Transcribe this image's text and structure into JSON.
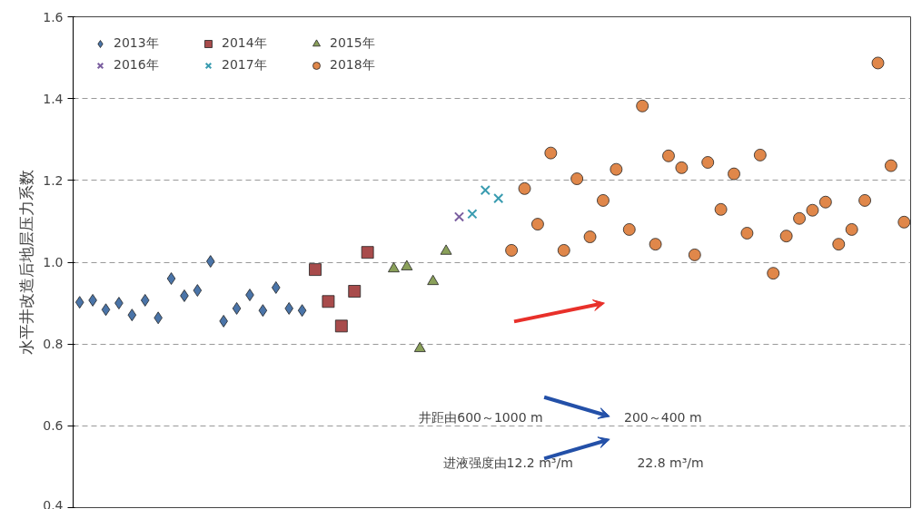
{
  "chart_data": {
    "type": "scatter",
    "ylabel": "水平井改造后地层压力系数",
    "categories": [
      null,
      null,
      null,
      null,
      null,
      null,
      null,
      null,
      null,
      null,
      null,
      null,
      null,
      null,
      null,
      null,
      null,
      null,
      null,
      null,
      null,
      null,
      null,
      null,
      null,
      null,
      null,
      null,
      null,
      null,
      null,
      null,
      null,
      null,
      null,
      null,
      null,
      null,
      null,
      null,
      null,
      null,
      null,
      null,
      null,
      null,
      null,
      null,
      null,
      null,
      null,
      null,
      null,
      null,
      null,
      null,
      null,
      null,
      null,
      null,
      null,
      null,
      null,
      null
    ],
    "ylim": [
      0.4,
      1.6
    ],
    "yticks": [
      0.4,
      0.6,
      0.8,
      {
        "value": 1.0,
        "label": "1.0"
      },
      1.2,
      1.4,
      1.6
    ],
    "grid": "y",
    "legend": "top left",
    "series": [
      {
        "name": "2013年",
        "color": "#4a74a8",
        "marker": "diamond",
        "values": [
          0.902,
          0.907,
          0.884,
          0.9,
          0.871,
          0.907,
          0.864,
          0.96,
          0.918,
          0.931,
          1.002,
          0.856,
          0.887,
          0.92,
          0.882,
          0.938,
          0.887,
          0.882,
          null,
          null,
          null,
          null,
          null,
          null,
          null,
          null,
          null,
          null,
          null,
          null,
          null,
          null,
          null,
          null,
          null,
          null,
          null,
          null,
          null,
          null,
          null,
          null,
          null,
          null,
          null,
          null,
          null,
          null,
          null,
          null,
          null,
          null,
          null,
          null,
          null,
          null,
          null,
          null,
          null,
          null,
          null,
          null,
          null,
          null
        ]
      },
      {
        "name": "2014年",
        "color": "#a84b4b",
        "marker": "square",
        "values": [
          null,
          null,
          null,
          null,
          null,
          null,
          null,
          null,
          null,
          null,
          null,
          null,
          null,
          null,
          null,
          null,
          null,
          null,
          0.982,
          0.904,
          0.844,
          0.929,
          1.024,
          null,
          null,
          null,
          null,
          null,
          null,
          null,
          null,
          null,
          null,
          null,
          null,
          null,
          null,
          null,
          null,
          null,
          null,
          null,
          null,
          null,
          null,
          null,
          null,
          null,
          null,
          null,
          null,
          null,
          null,
          null,
          null,
          null,
          null,
          null,
          null,
          null,
          null,
          null,
          null,
          null
        ]
      },
      {
        "name": "2015年",
        "color": "#8aa05a",
        "marker": "triangle",
        "values": [
          null,
          null,
          null,
          null,
          null,
          null,
          null,
          null,
          null,
          null,
          null,
          null,
          null,
          null,
          null,
          null,
          null,
          null,
          null,
          null,
          null,
          null,
          null,
          null,
          0.984,
          0.989,
          0.789,
          0.953,
          1.027,
          null,
          null,
          null,
          null,
          null,
          null,
          null,
          null,
          null,
          null,
          null,
          null,
          null,
          null,
          null,
          null,
          null,
          null,
          null,
          null,
          null,
          null,
          null,
          null,
          null,
          null,
          null,
          null,
          null,
          null,
          null,
          null,
          null,
          null,
          null
        ]
      },
      {
        "name": "2016年",
        "color": "#7b5fa0",
        "marker": "cross",
        "values": [
          null,
          null,
          null,
          null,
          null,
          null,
          null,
          null,
          null,
          null,
          null,
          null,
          null,
          null,
          null,
          null,
          null,
          null,
          null,
          null,
          null,
          null,
          null,
          null,
          null,
          null,
          null,
          null,
          null,
          1.111,
          null,
          null,
          null,
          null,
          null,
          null,
          null,
          null,
          null,
          null,
          null,
          null,
          null,
          null,
          null,
          null,
          null,
          null,
          null,
          null,
          null,
          null,
          null,
          null,
          null,
          null,
          null,
          null,
          null,
          null,
          null,
          null,
          null,
          null
        ]
      },
      {
        "name": "2017年",
        "color": "#3a9cb0",
        "marker": "cross",
        "values": [
          null,
          null,
          null,
          null,
          null,
          null,
          null,
          null,
          null,
          null,
          null,
          null,
          null,
          null,
          null,
          null,
          null,
          null,
          null,
          null,
          null,
          null,
          null,
          null,
          null,
          null,
          null,
          null,
          null,
          null,
          1.118,
          1.176,
          1.156,
          null,
          null,
          null,
          null,
          null,
          null,
          null,
          null,
          null,
          null,
          null,
          null,
          null,
          null,
          null,
          null,
          null,
          null,
          null,
          null,
          null,
          null,
          null,
          null,
          null,
          null,
          null,
          null,
          null,
          null,
          null
        ]
      },
      {
        "name": "2018年",
        "color": "#e0874a",
        "marker": "circle",
        "values": [
          null,
          null,
          null,
          null,
          null,
          null,
          null,
          null,
          null,
          null,
          null,
          null,
          null,
          null,
          null,
          null,
          null,
          null,
          null,
          null,
          null,
          null,
          null,
          null,
          null,
          null,
          null,
          null,
          null,
          null,
          null,
          null,
          null,
          1.029,
          1.18,
          1.093,
          1.267,
          1.029,
          1.204,
          1.062,
          1.151,
          1.227,
          1.08,
          1.382,
          1.044,
          1.26,
          1.231,
          1.018,
          1.244,
          1.129,
          1.216,
          1.071,
          1.262,
          0.973,
          1.064,
          1.107,
          1.127,
          1.147,
          1.044,
          1.08,
          1.151,
          1.487,
          1.236,
          1.098
        ]
      }
    ],
    "annotations": [
      "井距由600～1000 m",
      "200～400 m",
      "进液强度由12.2 m³/m",
      "22.8 m³/m"
    ]
  }
}
